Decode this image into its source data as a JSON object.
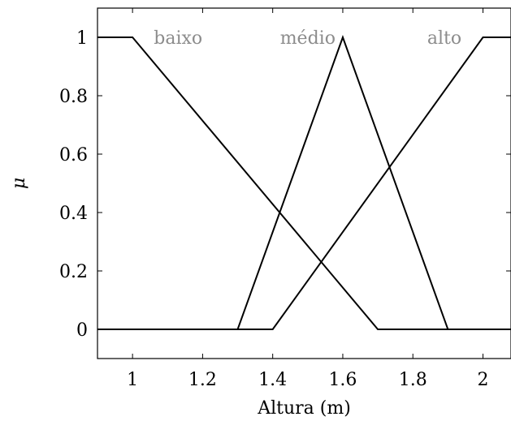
{
  "chart_data": {
    "type": "line",
    "xlabel": "Altura (m)",
    "ylabel": "μ",
    "xlim": [
      0.9,
      2.08
    ],
    "ylim": [
      -0.1,
      1.1
    ],
    "xticks": [
      1,
      1.2,
      1.4,
      1.6,
      1.8,
      2
    ],
    "xtick_labels": [
      "1",
      "1.2",
      "1.4",
      "1.6",
      "1.8",
      "2"
    ],
    "yticks": [
      0,
      0.2,
      0.4,
      0.6,
      0.8,
      1
    ],
    "ytick_labels": [
      "0",
      "0.2",
      "0.4",
      "0.6",
      "0.8",
      "1"
    ],
    "grid": false,
    "series": [
      {
        "name": "baixo",
        "x": [
          0.9,
          1.0,
          1.7,
          2.08
        ],
        "y": [
          1,
          1,
          0,
          0
        ],
        "label_at": [
          1.13,
          1.0
        ]
      },
      {
        "name": "médio",
        "x": [
          0.9,
          1.3,
          1.6,
          1.9,
          2.08
        ],
        "y": [
          0,
          0,
          1,
          0,
          0
        ],
        "label_at": [
          1.5,
          1.0
        ]
      },
      {
        "name": "alto",
        "x": [
          0.9,
          1.4,
          2.0,
          2.08
        ],
        "y": [
          0,
          0,
          1,
          1
        ],
        "label_at": [
          1.89,
          1.0
        ]
      }
    ],
    "line_color": "#000000",
    "label_color": "#8c8c8c"
  }
}
